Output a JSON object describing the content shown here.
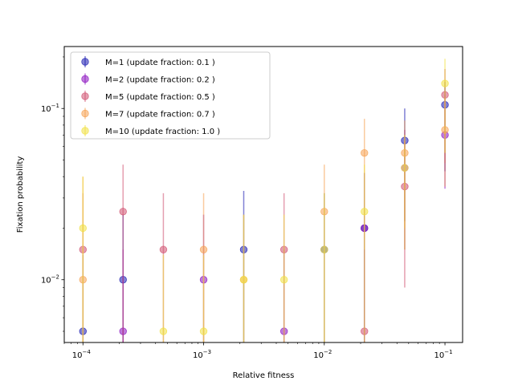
{
  "chart_data": {
    "type": "scatter",
    "title": "",
    "xlabel": "Relative fitness",
    "ylabel": "Fixation probability",
    "xscale": "log",
    "yscale": "log",
    "xlim": [
      7e-05,
      0.14
    ],
    "ylim": [
      0.0043,
      0.23
    ],
    "grid": false,
    "legend_position": "top-left",
    "x_ticks": [
      {
        "value": 0.0001,
        "base": "10",
        "exp": "−4"
      },
      {
        "value": 0.001,
        "base": "10",
        "exp": "−3"
      },
      {
        "value": 0.01,
        "base": "10",
        "exp": "−2"
      },
      {
        "value": 0.1,
        "base": "10",
        "exp": "−1"
      }
    ],
    "y_ticks": [
      {
        "value": 0.01,
        "base": "10",
        "exp": "−2"
      },
      {
        "value": 0.1,
        "base": "10",
        "exp": "−1"
      }
    ],
    "x": [
      0.0001,
      0.000215,
      0.000464,
      0.001,
      0.00215,
      0.00464,
      0.01,
      0.0215,
      0.0464,
      0.1
    ],
    "series": [
      {
        "name": "M=1 (update fraction: 0.1 )",
        "color": "#1a1ab0",
        "values": [
          0.005,
          0.01,
          null,
          0.0,
          0.015,
          0.0,
          0.015,
          0.02,
          0.065,
          0.105
        ],
        "err_low": [
          0.005,
          0.009,
          null,
          0.0,
          0.012,
          0.0,
          0.012,
          0.017,
          0.043,
          0.062
        ],
        "err_high": [
          0.009,
          0.014,
          null,
          0.0,
          0.018,
          0.0,
          0.017,
          0.022,
          0.035,
          0.038
        ]
      },
      {
        "name": "M=2 (update fraction: 0.2 )",
        "color": "#8a10c0",
        "values": [
          0.0,
          0.005,
          0.0,
          0.01,
          0.0,
          0.005,
          0.0,
          0.02,
          0.045,
          0.07
        ],
        "err_low": [
          0.0,
          0.005,
          0.0,
          0.009,
          0.0,
          0.005,
          0.0,
          0.017,
          0.03,
          0.036
        ],
        "err_high": [
          0.0,
          0.01,
          0.0,
          0.014,
          0.0,
          0.01,
          0.0,
          0.022,
          0.03,
          0.05
        ]
      },
      {
        "name": "M=5 (update fraction: 0.5 )",
        "color": "#d05070",
        "values": [
          0.015,
          0.025,
          0.015,
          0.0,
          0.0,
          0.015,
          0.0,
          0.005,
          0.035,
          0.12
        ],
        "err_low": [
          0.015,
          0.024,
          0.015,
          0.0,
          0.0,
          0.015,
          0.0,
          0.005,
          0.026,
          0.072
        ],
        "err_high": [
          0.017,
          0.022,
          0.017,
          0.0,
          0.0,
          0.017,
          0.0,
          0.01,
          0.03,
          0.05
        ]
      },
      {
        "name": "M=7 (update fraction: 0.7 )",
        "color": "#f5a050",
        "values": [
          0.01,
          0.0,
          0.0,
          0.015,
          0.01,
          0.0,
          0.025,
          0.055,
          0.055,
          0.075
        ],
        "err_low": [
          0.01,
          0.0,
          0.0,
          0.015,
          0.01,
          0.0,
          0.025,
          0.04,
          0.035,
          0.04
        ],
        "err_high": [
          0.03,
          0.0,
          0.0,
          0.017,
          0.014,
          0.0,
          0.022,
          0.032,
          0.03,
          0.04
        ]
      },
      {
        "name": "M=10 (update fraction: 1.0 )",
        "color": "#f0e040",
        "values": [
          0.02,
          0.0,
          0.005,
          0.005,
          0.01,
          0.01,
          0.015,
          0.025,
          0.045,
          0.14
        ],
        "err_low": [
          0.02,
          0.0,
          0.005,
          0.005,
          0.01,
          0.01,
          0.015,
          0.024,
          0.03,
          0.085
        ],
        "err_high": [
          0.02,
          0.0,
          0.009,
          0.009,
          0.014,
          0.014,
          0.017,
          0.022,
          0.025,
          0.055
        ]
      }
    ]
  }
}
